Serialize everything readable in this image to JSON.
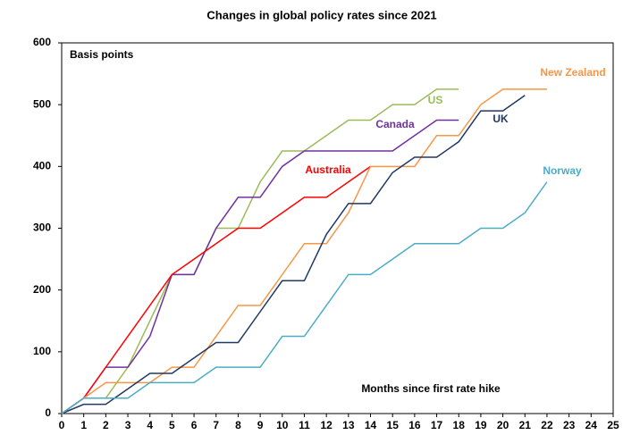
{
  "chart_data": {
    "type": "line",
    "title": "Changes in global policy rates since 2021",
    "y_label": "Basis points",
    "x_label": "Months since first rate hike",
    "x": [
      0,
      1,
      2,
      3,
      4,
      5,
      6,
      7,
      8,
      9,
      10,
      11,
      12,
      13,
      14,
      15,
      16,
      17,
      18,
      19,
      20,
      21,
      22
    ],
    "series": [
      {
        "name": "US",
        "color": "#9bbb59",
        "values": [
          0,
          25,
          25,
          75,
          150,
          225,
          225,
          300,
          300,
          375,
          425,
          425,
          450,
          475,
          475,
          500,
          500,
          525,
          525,
          null,
          null,
          null,
          null
        ]
      },
      {
        "name": "Canada",
        "color": "#7030a0",
        "values": [
          0,
          25,
          75,
          75,
          125,
          225,
          225,
          300,
          350,
          350,
          400,
          425,
          425,
          425,
          425,
          425,
          450,
          475,
          475,
          null,
          null,
          null,
          null
        ]
      },
      {
        "name": "Australia",
        "color": "#ff0000",
        "values": [
          0,
          25,
          75,
          125,
          175,
          225,
          250,
          275,
          300,
          300,
          325,
          350,
          350,
          375,
          400,
          null,
          null,
          null,
          null,
          null,
          null,
          null,
          null
        ]
      },
      {
        "name": "New Zealand",
        "color": "#f79646",
        "values": [
          0,
          25,
          50,
          50,
          50,
          75,
          75,
          125,
          175,
          175,
          225,
          275,
          275,
          325,
          400,
          400,
          400,
          450,
          450,
          500,
          525,
          525,
          525
        ]
      },
      {
        "name": "UK",
        "color": "#1f3864",
        "values": [
          0,
          15,
          15,
          40,
          65,
          65,
          90,
          115,
          115,
          165,
          215,
          215,
          290,
          340,
          340,
          390,
          415,
          415,
          440,
          490,
          490,
          515,
          null
        ]
      },
      {
        "name": "Norway",
        "color": "#4bacc6",
        "values": [
          0,
          25,
          25,
          25,
          50,
          50,
          50,
          75,
          75,
          75,
          125,
          125,
          175,
          225,
          225,
          250,
          275,
          275,
          275,
          300,
          300,
          325,
          375
        ]
      }
    ],
    "xlim": [
      0,
      25
    ],
    "xticks": [
      0,
      1,
      2,
      3,
      4,
      5,
      6,
      7,
      8,
      9,
      10,
      11,
      12,
      13,
      14,
      15,
      16,
      17,
      18,
      19,
      20,
      21,
      22,
      23,
      24,
      25
    ],
    "ylim": [
      0,
      600
    ],
    "yticks": [
      0,
      100,
      200,
      300,
      400,
      500,
      600
    ]
  }
}
